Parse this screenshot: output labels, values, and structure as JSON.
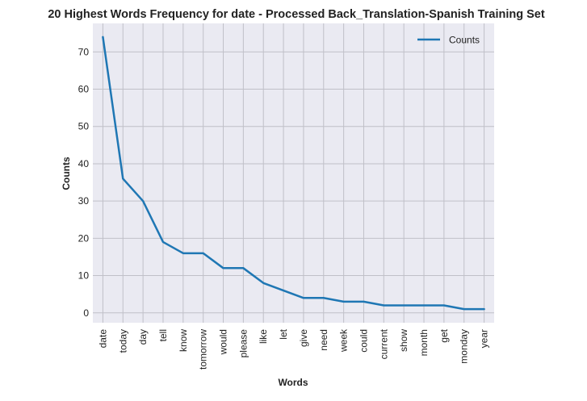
{
  "chart_data": {
    "type": "line",
    "title": "20 Highest Words Frequency for date - Processed Back_Translation-Spanish Training Set",
    "xlabel": "Words",
    "ylabel": "Counts",
    "categories": [
      "date",
      "today",
      "day",
      "tell",
      "know",
      "tomorrow",
      "would",
      "please",
      "like",
      "let",
      "give",
      "need",
      "week",
      "could",
      "current",
      "show",
      "month",
      "get",
      "monday",
      "year"
    ],
    "series": [
      {
        "name": "Counts",
        "values": [
          74,
          36,
          30,
          19,
          16,
          16,
          12,
          12,
          8,
          6,
          4,
          4,
          3,
          3,
          2,
          2,
          2,
          2,
          1,
          1
        ]
      }
    ],
    "yticks": [
      0,
      10,
      20,
      30,
      40,
      50,
      60,
      70
    ],
    "ylim": [
      -2.65,
      77.65
    ],
    "grid": true,
    "legend_position": "top-right",
    "colors": {
      "line": "#1f77b4",
      "plot_background": "#eaeaf2",
      "grid": "#c0c0c8"
    }
  }
}
